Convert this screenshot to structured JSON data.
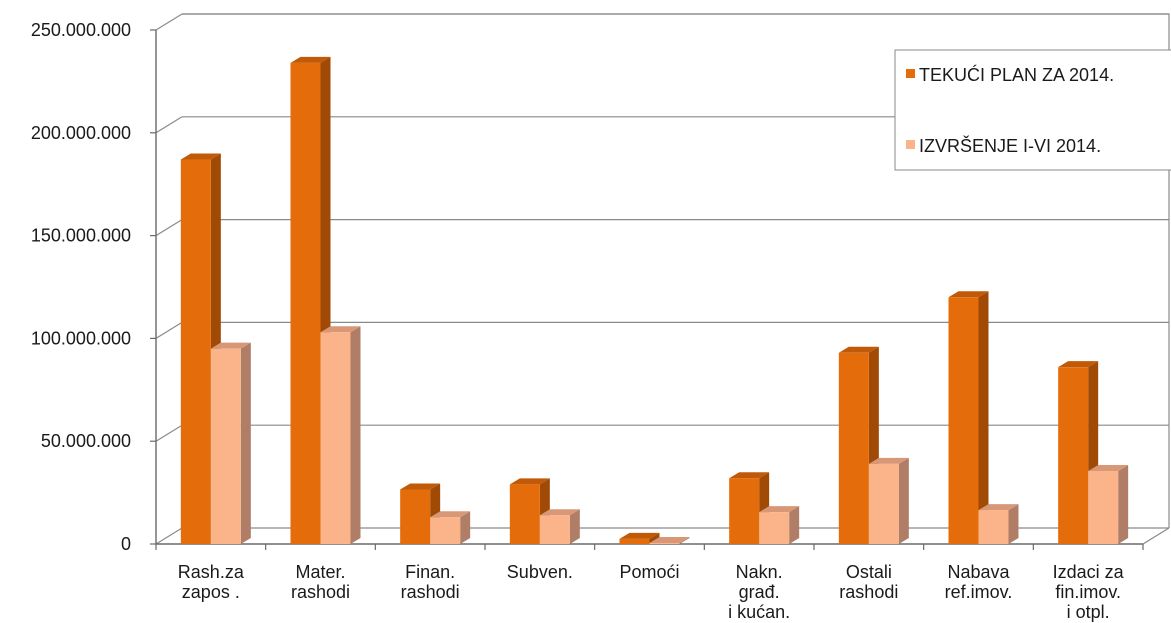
{
  "chart_data": {
    "type": "bar",
    "style": "3d-clustered-column",
    "title": "",
    "xlabel": "",
    "ylabel": "",
    "ylim": [
      0,
      250000000
    ],
    "y_ticks": [
      "0",
      "50.000.000",
      "100.000.000",
      "150.000.000",
      "200.000.000",
      "250.000.000"
    ],
    "categories": [
      [
        "Rash.za",
        "zapos ."
      ],
      [
        "Mater.",
        "rashodi"
      ],
      [
        "Finan.",
        "rashodi"
      ],
      [
        "Subven."
      ],
      [
        "Pomoći"
      ],
      [
        "Nakn.",
        "građ.",
        "i kućan."
      ],
      [
        "Ostali",
        "rashodi"
      ],
      [
        "Nabava",
        "ref.imov."
      ],
      [
        "Izdaci za",
        "fin.imov.",
        "i otpl."
      ]
    ],
    "series": [
      {
        "name": "TEKUĆI PLAN ZA 2014.",
        "color": "#E46C0A",
        "side_color": "#A04A06",
        "top_color": "#C05A08",
        "values": [
          187000000,
          234000000,
          26500000,
          29000000,
          2500000,
          32000000,
          93000000,
          120000000,
          86000000
        ]
      },
      {
        "name": "IZVRŠENJE I-VI 2014.",
        "color": "#FBB48A",
        "side_color": "#B07E66",
        "top_color": "#D89878",
        "values": [
          95000000,
          103000000,
          13000000,
          14000000,
          500000,
          15500000,
          39000000,
          16500000,
          35500000
        ]
      }
    ],
    "grid": true,
    "legend_position": "top-right"
  }
}
